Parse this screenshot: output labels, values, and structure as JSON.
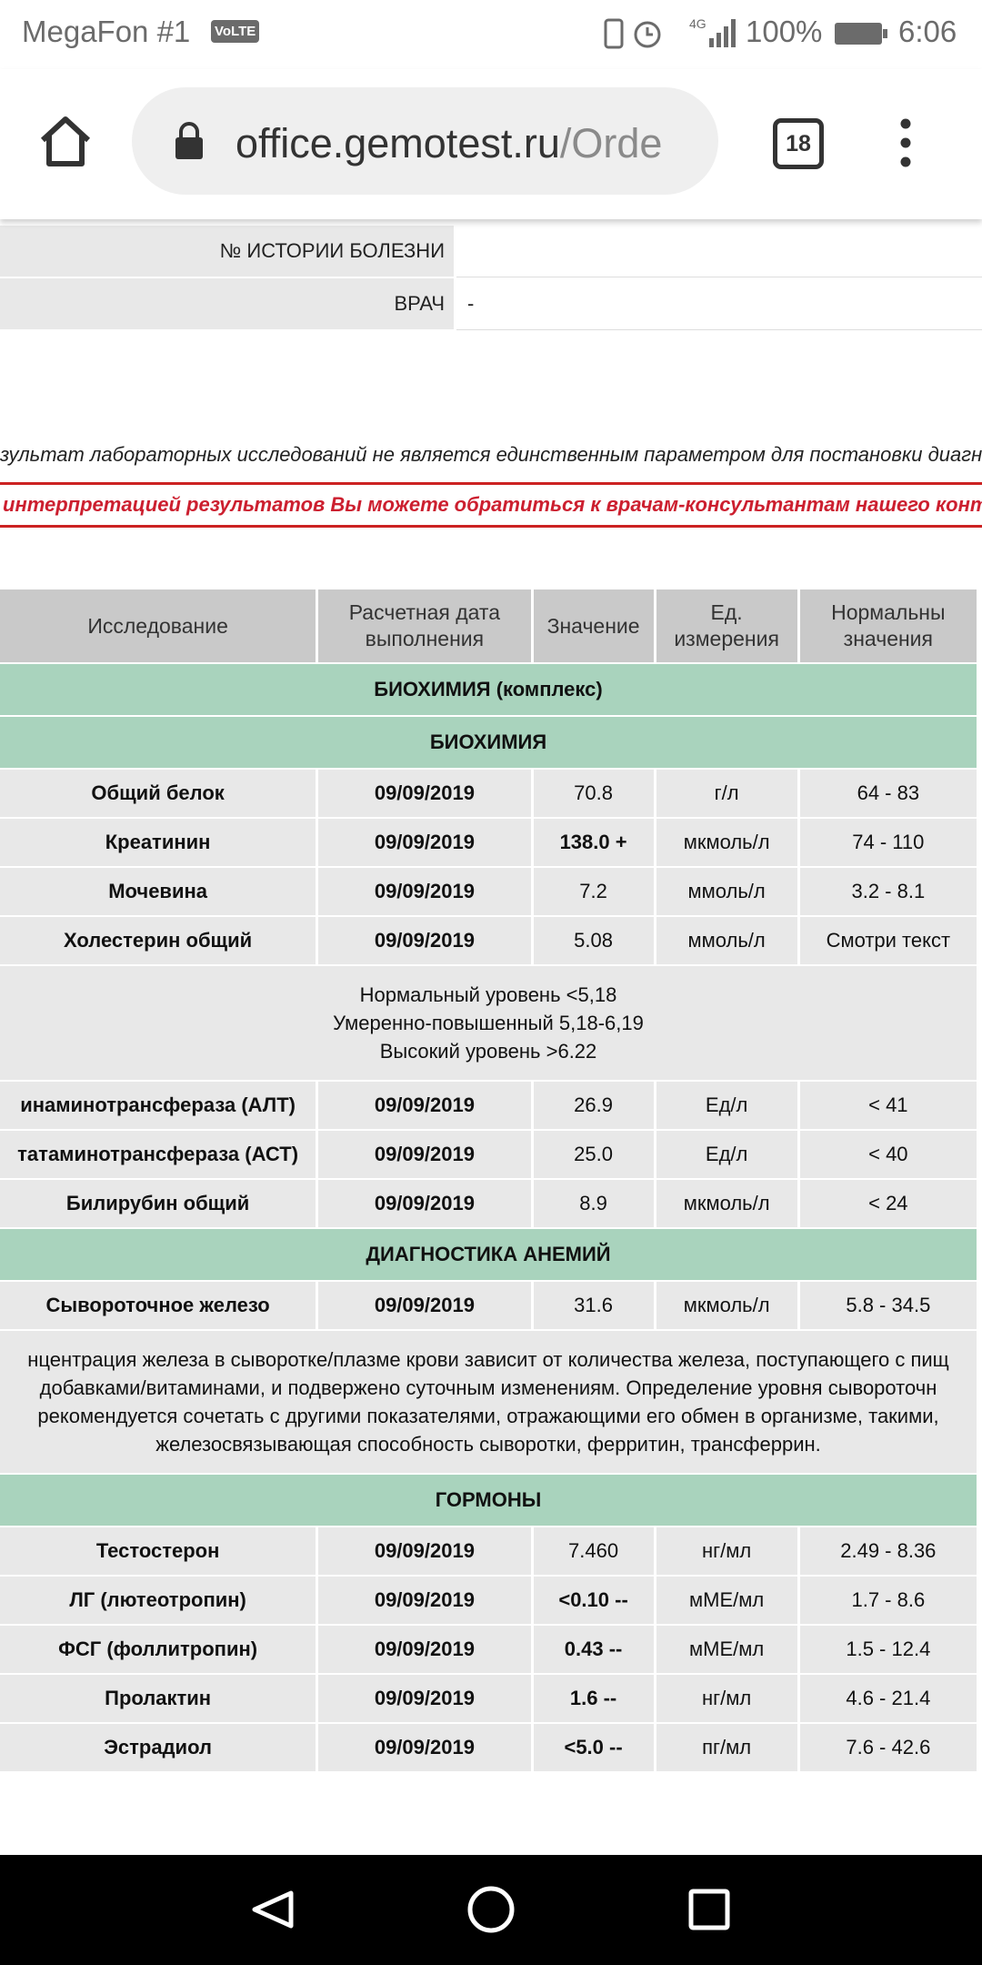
{
  "status_bar": {
    "carrier": "MegaFon #1",
    "volte": "VoLTE",
    "network": "4G",
    "battery": "100%",
    "time": "6:06"
  },
  "browser": {
    "url_host": "office.gemotest.ru",
    "url_path": "/Orde",
    "tab_count": "18"
  },
  "patient_info": [
    {
      "label": "№ ИСТОРИИ БОЛЕЗНИ"
    },
    {
      "label": "ВРАЧ",
      "value": "-"
    }
  ],
  "disclaimer": "зультат лабораторных исследований не является единственным параметром для постановки диагноз",
  "notice": "интерпретацией результатов Вы можете обратиться к врачам-консультантам нашего контакт-центр",
  "results": {
    "header": [
      [
        "Исследование"
      ],
      [
        "Расчетная дата",
        "выполнения"
      ],
      [
        "Значение"
      ],
      [
        "Ед.",
        "измерения"
      ],
      [
        "Нормальны",
        "значения"
      ]
    ],
    "rows": [
      {
        "section": "БИОХИМИЯ (комплекс)"
      },
      {
        "section": "БИОХИМИЯ"
      },
      {
        "test": [
          "Общий белок",
          "09/09/2019",
          "70.8",
          "г/л",
          "64 - 83"
        ]
      },
      {
        "test": [
          "Креатинин",
          "09/09/2019",
          "138.0 +",
          "мкмоль/л",
          "74 - 110"
        ],
        "flagged": true
      },
      {
        "test": [
          "Мочевина",
          "09/09/2019",
          "7.2",
          "ммоль/л",
          "3.2 - 8.1"
        ]
      },
      {
        "test": [
          "Холестерин общий",
          "09/09/2019",
          "5.08",
          "ммоль/л",
          "Смотри текст"
        ]
      },
      {
        "note": [
          "Нормальный уровень <5,18",
          "Умеренно-повышенный 5,18-6,19",
          "Высокий уровень >6.22"
        ]
      },
      {
        "test": [
          "инаминотрансфераза (АЛТ)",
          "09/09/2019",
          "26.9",
          "Ед/л",
          "< 41"
        ]
      },
      {
        "test": [
          "татаминотрансфераза (АСТ)",
          "09/09/2019",
          "25.0",
          "Ед/л",
          "< 40"
        ]
      },
      {
        "test": [
          "Билирубин общий",
          "09/09/2019",
          "8.9",
          "мкмоль/л",
          "< 24"
        ]
      },
      {
        "section": "ДИАГНОСТИКА АНЕМИЙ"
      },
      {
        "test": [
          "Сывороточное железо",
          "09/09/2019",
          "31.6",
          "мкмоль/л",
          "5.8 - 34.5"
        ]
      },
      {
        "note": [
          "нцентрация железа в сыворотке/плазме крови зависит от количества железа, поступающего с пищ",
          "добавками/витаминами, и подвержено суточным изменениям. Определение уровня сывороточн",
          "рекомендуется сочетать с другими показателями, отражающими его обмен в организме, такими,",
          "железосвязывающая способность сыворотки, ферритин, трансферрин."
        ]
      },
      {
        "section": "ГОРМОНЫ"
      },
      {
        "test": [
          "Тестостерон",
          "09/09/2019",
          "7.460",
          "нг/мл",
          "2.49 - 8.36"
        ]
      },
      {
        "test": [
          "ЛГ (лютеотропин)",
          "09/09/2019",
          "<0.10 --",
          "мМЕ/мл",
          "1.7 - 8.6"
        ],
        "flagged": true
      },
      {
        "test": [
          "ФСГ (фоллитропин)",
          "09/09/2019",
          "0.43 --",
          "мМЕ/мл",
          "1.5 - 12.4"
        ],
        "flagged": true
      },
      {
        "test": [
          "Пролактин",
          "09/09/2019",
          "1.6 --",
          "нг/мл",
          "4.6 - 21.4"
        ],
        "flagged": true
      },
      {
        "test": [
          "Эстрадиол",
          "09/09/2019",
          "<5.0 --",
          "пг/мл",
          "7.6 - 42.6"
        ],
        "flagged": true
      }
    ]
  }
}
